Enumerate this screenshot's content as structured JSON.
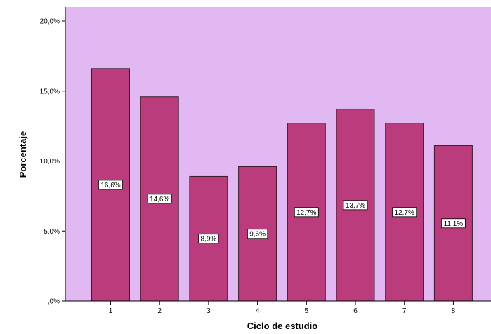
{
  "chart_data": {
    "type": "bar",
    "categories": [
      "1",
      "2",
      "3",
      "4",
      "5",
      "6",
      "7",
      "8"
    ],
    "values": [
      16.6,
      14.6,
      8.9,
      9.6,
      12.7,
      13.7,
      12.7,
      11.1
    ],
    "data_labels": [
      "16,6%",
      "14,6%",
      "8,9%",
      "9,6%",
      "12,7%",
      "13,7%",
      "12,7%",
      "11,1%"
    ],
    "xlabel": "Ciclo de estudio",
    "ylabel": "Porcentaje",
    "ylim": [
      0,
      20
    ],
    "yticks": [
      {
        "value": 0,
        "label": ",0%"
      },
      {
        "value": 5,
        "label": "5,0%"
      },
      {
        "value": 10,
        "label": "10,0%"
      },
      {
        "value": 15,
        "label": "15,0%"
      },
      {
        "value": 20,
        "label": "20,0%"
      }
    ],
    "grid": false,
    "colors": {
      "plot_background": "#E1B8F1",
      "bar_fill": "#BB3C7D",
      "bar_stroke": "#3A1A2A",
      "outer_background": "#FFFFFF"
    }
  }
}
